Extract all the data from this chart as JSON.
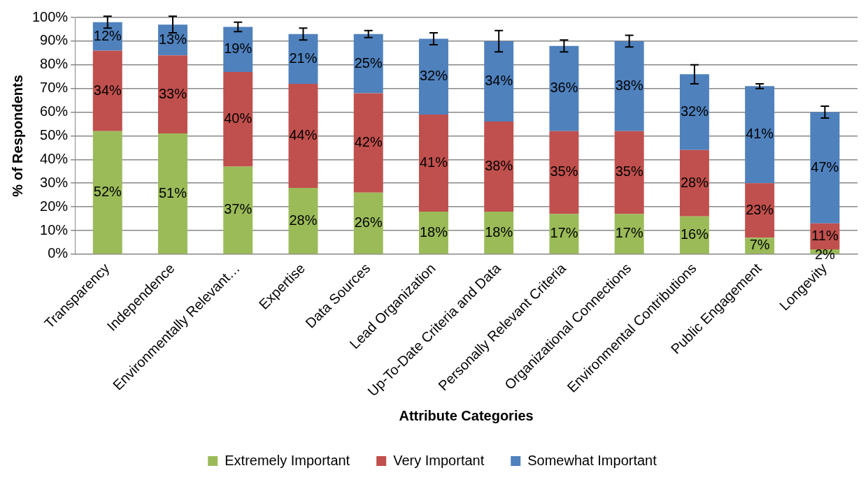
{
  "chart_data": {
    "type": "bar",
    "stacked": true,
    "xlabel": "Attribute Categories",
    "ylabel": "% of Respondents",
    "categories": [
      "Transparency",
      "Independence",
      "Environmentally Relevant…",
      "Expertise",
      "Data Sources",
      "Lead Organization",
      "Up-To-Date Criteria and Data",
      "Personally Relevant Criteria",
      "Organizational Connections",
      "Environmental Contributions",
      "Public Engagement",
      "Longevity"
    ],
    "series": [
      {
        "name": "Extremely Important",
        "color": "#9bbb59",
        "values": [
          52,
          51,
          37,
          28,
          26,
          18,
          18,
          17,
          17,
          16,
          7,
          2
        ],
        "value_labels": [
          "52%",
          "51%",
          "37%",
          "28%",
          "26%",
          "18%",
          "18%",
          "17%",
          "17%",
          "16%",
          "7%",
          "2%"
        ]
      },
      {
        "name": "Very Important",
        "color": "#c0504d",
        "values": [
          34,
          33,
          40,
          44,
          42,
          41,
          38,
          35,
          35,
          28,
          23,
          11
        ],
        "value_labels": [
          "34%",
          "33%",
          "40%",
          "44%",
          "42%",
          "41%",
          "38%",
          "35%",
          "35%",
          "28%",
          "23%",
          "11%"
        ]
      },
      {
        "name": "Somewhat Important",
        "color": "#4f81bd",
        "values": [
          12,
          13,
          19,
          21,
          25,
          32,
          34,
          36,
          38,
          32,
          41,
          47
        ],
        "value_labels": [
          "12%",
          "13%",
          "19%",
          "21%",
          "25%",
          "32%",
          "34%",
          "36%",
          "38%",
          "32%",
          "41%",
          "47%"
        ],
        "errors": [
          2.5,
          3.5,
          2,
          2.5,
          1.5,
          2.5,
          4.5,
          2.5,
          2.5,
          4,
          1,
          2.5
        ]
      }
    ],
    "ylim": [
      0,
      100
    ],
    "yticks": [
      {
        "value": 0,
        "label": "0%"
      },
      {
        "value": 10,
        "label": "10%"
      },
      {
        "value": 20,
        "label": "20%"
      },
      {
        "value": 30,
        "label": "30%"
      },
      {
        "value": 40,
        "label": "40%"
      },
      {
        "value": 50,
        "label": "50%"
      },
      {
        "value": 60,
        "label": "60%"
      },
      {
        "value": 70,
        "label": "70%"
      },
      {
        "value": 80,
        "label": "80%"
      },
      {
        "value": 90,
        "label": "90%"
      },
      {
        "value": 100,
        "label": "100%"
      }
    ],
    "grid": "y",
    "legend": "bottom"
  }
}
